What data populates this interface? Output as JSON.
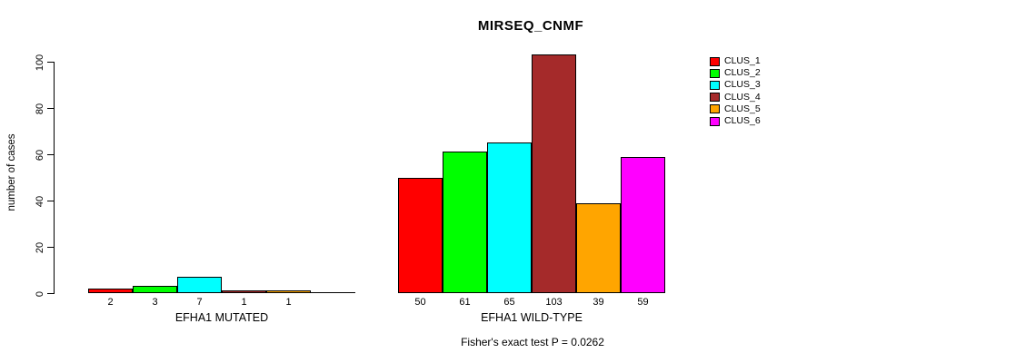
{
  "title": "MIRSEQ_CNMF",
  "ylabel": "number of cases",
  "annotation": "Fisher's exact test P = 0.0262",
  "chart_data": {
    "type": "bar",
    "title": "MIRSEQ_CNMF",
    "ylabel": "number of cases",
    "xlabel": "",
    "ylim": [
      0,
      100
    ],
    "yticks": [
      0,
      20,
      40,
      60,
      80,
      100
    ],
    "grid": false,
    "legend_position": "right",
    "series_colors": [
      "#FF0000",
      "#00FF00",
      "#00FFFF",
      "#A52A2A",
      "#FFA500",
      "#FF00FF"
    ],
    "legend_entries": [
      {
        "label": "CLUS_1",
        "color": "#FF0000"
      },
      {
        "label": "CLUS_2",
        "color": "#00FF00"
      },
      {
        "label": "CLUS_3",
        "color": "#00FFFF"
      },
      {
        "label": "CLUS_4",
        "color": "#A52A2A"
      },
      {
        "label": "CLUS_5",
        "color": "#FFA500"
      },
      {
        "label": "CLUS_6",
        "color": "#FF00FF"
      }
    ],
    "groups": [
      {
        "label": "EFHA1 MUTATED",
        "values": [
          2,
          3,
          7,
          1,
          1,
          0
        ],
        "bar_labels": [
          "2",
          "3",
          "7",
          "1",
          "1",
          ""
        ]
      },
      {
        "label": "EFHA1 WILD-TYPE",
        "values": [
          50,
          61,
          65,
          103,
          39,
          59
        ],
        "bar_labels": [
          "50",
          "61",
          "65",
          "103",
          "39",
          "59"
        ]
      }
    ],
    "annotation": "Fisher's exact test P = 0.0262"
  }
}
